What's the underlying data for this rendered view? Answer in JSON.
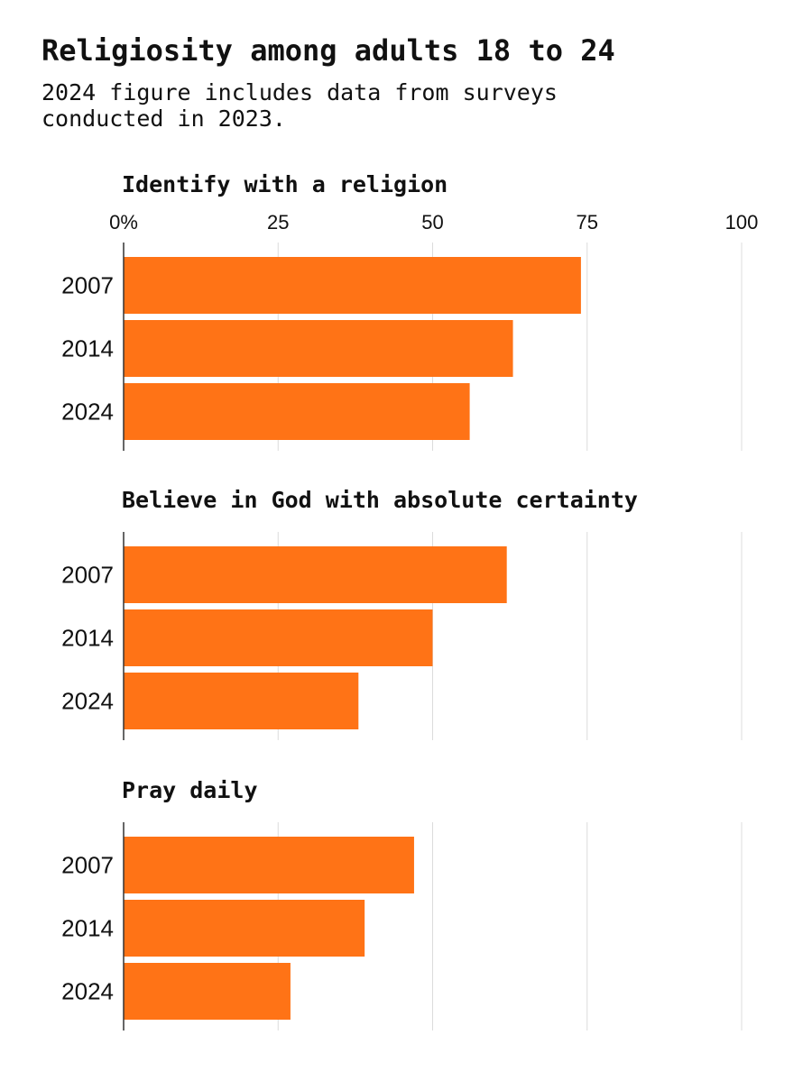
{
  "title": "Religiosity among adults 18 to 24",
  "subtitle": [
    "2024 figure includes data from surveys",
    "conducted in 2023."
  ],
  "chart_data": [
    {
      "type": "bar",
      "orientation": "horizontal",
      "title": "Identify with a religion",
      "categories": [
        "2007",
        "2014",
        "2024"
      ],
      "values": [
        74,
        63,
        56
      ],
      "color": "#ff7316",
      "xlim": [
        0,
        100
      ],
      "xticks": [
        {
          "value": 0,
          "label": "0%"
        },
        25,
        50,
        75,
        100
      ],
      "grid": true
    },
    {
      "type": "bar",
      "orientation": "horizontal",
      "title": "Believe in God with absolute certainty",
      "categories": [
        "2007",
        "2014",
        "2024"
      ],
      "values": [
        62,
        50,
        38
      ],
      "color": "#ff7316",
      "xlim": [
        0,
        100
      ],
      "grid": true
    },
    {
      "type": "bar",
      "orientation": "horizontal",
      "title": "Pray daily",
      "categories": [
        "2007",
        "2014",
        "2024"
      ],
      "values": [
        47,
        39,
        27
      ],
      "color": "#ff7316",
      "xlim": [
        0,
        100
      ],
      "grid": true
    }
  ]
}
